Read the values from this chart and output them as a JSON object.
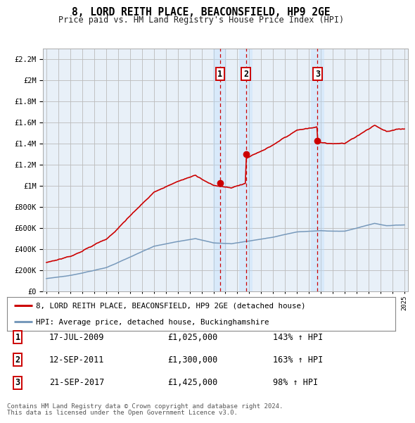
{
  "title": "8, LORD REITH PLACE, BEACONSFIELD, HP9 2GE",
  "subtitle": "Price paid vs. HM Land Registry's House Price Index (HPI)",
  "legend_line1": "8, LORD REITH PLACE, BEACONSFIELD, HP9 2GE (detached house)",
  "legend_line2": "HPI: Average price, detached house, Buckinghamshire",
  "footnote1": "Contains HM Land Registry data © Crown copyright and database right 2024.",
  "footnote2": "This data is licensed under the Open Government Licence v3.0.",
  "transactions": [
    {
      "num": 1,
      "date": "17-JUL-2009",
      "price": "£1,025,000",
      "hpi": "143% ↑ HPI",
      "x": 2009.54
    },
    {
      "num": 2,
      "date": "12-SEP-2011",
      "price": "£1,300,000",
      "hpi": "163% ↑ HPI",
      "x": 2011.71
    },
    {
      "num": 3,
      "date": "21-SEP-2017",
      "price": "£1,425,000",
      "hpi": "98% ↑ HPI",
      "x": 2017.72
    }
  ],
  "transaction_values": [
    1025000,
    1300000,
    1425000
  ],
  "red_color": "#cc0000",
  "blue_color": "#7799bb",
  "background_color": "#ffffff",
  "chart_bg": "#e8f0f8",
  "grid_color": "#bbbbbb",
  "ylim": [
    0,
    2300000
  ],
  "xlim_start": 1994.7,
  "xlim_end": 2025.3
}
